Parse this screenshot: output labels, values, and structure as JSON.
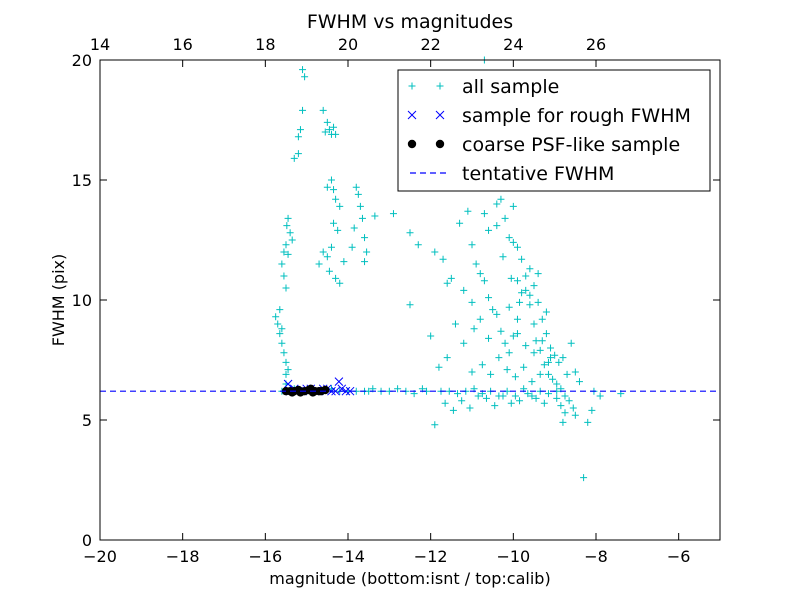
{
  "chart_data": {
    "type": "scatter",
    "title": "FWHM vs magnitudes",
    "xlabel": "magnitude (bottom:isnt / top:calib)",
    "ylabel": "FWHM (pix)",
    "xlim": [
      -20,
      -5
    ],
    "ylim": [
      0,
      20
    ],
    "x_ticks": [
      -20,
      -18,
      -16,
      -14,
      -12,
      -10,
      -8,
      -6
    ],
    "x_tick_labels": [
      "−20",
      "−18",
      "−16",
      "−14",
      "−12",
      "−10",
      "−8",
      "−6"
    ],
    "y_ticks": [
      0,
      5,
      10,
      15,
      20
    ],
    "y_tick_labels": [
      "0",
      "5",
      "10",
      "15",
      "20"
    ],
    "top_axis": {
      "offset": 34,
      "ticks": [
        14,
        16,
        18,
        20,
        22,
        24,
        26
      ],
      "tick_labels": [
        "14",
        "16",
        "18",
        "20",
        "22",
        "24",
        "26"
      ]
    },
    "legend_position": "top-right",
    "series": [
      {
        "name": "all sample",
        "marker": "+",
        "color": "#00bfbf",
        "points": [
          [
            -15.7,
            9.0
          ],
          [
            -15.75,
            9.3
          ],
          [
            -15.65,
            8.6
          ],
          [
            -15.6,
            8.2
          ],
          [
            -15.55,
            7.8
          ],
          [
            -15.5,
            7.4
          ],
          [
            -15.45,
            7.1
          ],
          [
            -15.5,
            6.9
          ],
          [
            -15.6,
            8.8
          ],
          [
            -15.65,
            9.6
          ],
          [
            -15.6,
            11.5
          ],
          [
            -15.55,
            12.0
          ],
          [
            -15.5,
            12.3
          ],
          [
            -15.48,
            13.1
          ],
          [
            -15.45,
            13.4
          ],
          [
            -15.4,
            12.8
          ],
          [
            -15.35,
            12.5
          ],
          [
            -15.55,
            11.0
          ],
          [
            -15.45,
            11.9
          ],
          [
            -15.5,
            10.5
          ],
          [
            -15.3,
            15.9
          ],
          [
            -15.2,
            16.1
          ],
          [
            -15.2,
            16.8
          ],
          [
            -15.15,
            17.1
          ],
          [
            -15.1,
            19.6
          ],
          [
            -15.05,
            19.3
          ],
          [
            -15.1,
            17.9
          ],
          [
            -14.6,
            17.9
          ],
          [
            -14.5,
            17.4
          ],
          [
            -14.45,
            17.1
          ],
          [
            -14.4,
            16.9
          ],
          [
            -14.3,
            16.9
          ],
          [
            -14.35,
            17.2
          ],
          [
            -14.55,
            17.0
          ],
          [
            -14.5,
            14.7
          ],
          [
            -14.4,
            15.0
          ],
          [
            -14.35,
            14.6
          ],
          [
            -14.3,
            14.2
          ],
          [
            -14.2,
            13.9
          ],
          [
            -14.25,
            12.9
          ],
          [
            -14.4,
            12.2
          ],
          [
            -14.5,
            11.8
          ],
          [
            -14.6,
            12.0
          ],
          [
            -14.7,
            11.5
          ],
          [
            -14.45,
            11.2
          ],
          [
            -14.3,
            10.9
          ],
          [
            -14.2,
            10.7
          ],
          [
            -14.1,
            11.6
          ],
          [
            -14.35,
            13.2
          ],
          [
            -13.8,
            14.7
          ],
          [
            -13.75,
            14.4
          ],
          [
            -13.7,
            13.9
          ],
          [
            -13.65,
            13.4
          ],
          [
            -13.6,
            12.6
          ],
          [
            -13.55,
            12.0
          ],
          [
            -13.6,
            11.6
          ],
          [
            -13.85,
            13.0
          ],
          [
            -13.9,
            12.2
          ],
          [
            -13.35,
            13.5
          ],
          [
            -12.9,
            13.6
          ],
          [
            -12.5,
            12.8
          ],
          [
            -12.5,
            9.8
          ],
          [
            -12.3,
            12.3
          ],
          [
            -11.9,
            12.0
          ],
          [
            -11.7,
            11.7
          ],
          [
            -11.5,
            10.9
          ],
          [
            -11.6,
            10.7
          ],
          [
            -11.3,
            13.2
          ],
          [
            -11.1,
            13.7
          ],
          [
            -11.0,
            12.3
          ],
          [
            -10.9,
            11.5
          ],
          [
            -10.8,
            11.1
          ],
          [
            -10.7,
            10.8
          ],
          [
            -10.6,
            10.1
          ],
          [
            -10.5,
            9.6
          ],
          [
            -10.4,
            9.4
          ],
          [
            -10.3,
            8.7
          ],
          [
            -10.2,
            8.2
          ],
          [
            -10.1,
            7.8
          ],
          [
            -10.0,
            8.5
          ],
          [
            -9.9,
            9.2
          ],
          [
            -9.8,
            10.3
          ],
          [
            -9.7,
            11.0
          ],
          [
            -9.6,
            11.3
          ],
          [
            -9.5,
            10.6
          ],
          [
            -9.4,
            9.9
          ],
          [
            -9.3,
            9.2
          ],
          [
            -9.2,
            8.6
          ],
          [
            -9.1,
            8.0
          ],
          [
            -9.0,
            7.7
          ],
          [
            -8.9,
            7.4
          ],
          [
            -8.8,
            7.6
          ],
          [
            -8.7,
            6.9
          ],
          [
            -10.5,
            14.7
          ],
          [
            -10.3,
            14.2
          ],
          [
            -10.2,
            13.4
          ],
          [
            -10.1,
            12.6
          ],
          [
            -10.0,
            12.4
          ],
          [
            -10.4,
            14.0
          ],
          [
            -10.7,
            20.0
          ],
          [
            -10.8,
            16.9
          ],
          [
            -10.9,
            15.0
          ],
          [
            -10.7,
            13.6
          ],
          [
            -10.6,
            12.9
          ],
          [
            -10.4,
            13.1
          ],
          [
            -10.0,
            13.9
          ],
          [
            -9.9,
            12.2
          ],
          [
            -9.8,
            11.7
          ],
          [
            -9.7,
            10.4
          ],
          [
            -9.6,
            9.8
          ],
          [
            -9.5,
            9.0
          ],
          [
            -9.45,
            8.3
          ],
          [
            -9.35,
            7.9
          ],
          [
            -9.25,
            7.3
          ],
          [
            -9.15,
            6.9
          ],
          [
            -9.05,
            6.7
          ],
          [
            -8.95,
            6.5
          ],
          [
            -8.85,
            6.3
          ],
          [
            -8.75,
            6.0
          ],
          [
            -8.65,
            5.8
          ],
          [
            -8.55,
            5.5
          ],
          [
            -8.5,
            5.2
          ],
          [
            -8.8,
            4.9
          ],
          [
            -8.2,
            4.9
          ],
          [
            -8.1,
            5.4
          ],
          [
            -8.3,
            2.6
          ],
          [
            -7.4,
            6.1
          ],
          [
            -7.9,
            6.0
          ],
          [
            -8.05,
            6.2
          ],
          [
            -12.0,
            8.5
          ],
          [
            -11.6,
            7.6
          ],
          [
            -11.8,
            7.2
          ],
          [
            -11.4,
            9.0
          ],
          [
            -11.2,
            8.2
          ],
          [
            -11.0,
            7.0
          ],
          [
            -10.95,
            8.8
          ],
          [
            -10.75,
            7.3
          ],
          [
            -10.55,
            6.9
          ],
          [
            -10.35,
            7.6
          ],
          [
            -10.15,
            7.1
          ],
          [
            -9.95,
            6.8
          ],
          [
            -9.75,
            7.2
          ],
          [
            -9.55,
            6.6
          ],
          [
            -9.35,
            6.9
          ],
          [
            -9.15,
            7.4
          ],
          [
            -8.95,
            5.9
          ],
          [
            -8.85,
            5.6
          ],
          [
            -8.75,
            5.3
          ],
          [
            -9.25,
            5.7
          ],
          [
            -9.45,
            5.9
          ],
          [
            -9.65,
            6.1
          ],
          [
            -9.85,
            5.8
          ],
          [
            -10.05,
            5.7
          ],
          [
            -10.25,
            6.0
          ],
          [
            -10.45,
            5.6
          ],
          [
            -10.65,
            5.9
          ],
          [
            -10.85,
            6.0
          ],
          [
            -11.05,
            5.5
          ],
          [
            -11.25,
            5.8
          ],
          [
            -11.45,
            5.4
          ],
          [
            -11.65,
            5.7
          ],
          [
            -11.9,
            4.8
          ],
          [
            -12.2,
            6.3
          ],
          [
            -12.4,
            6.1
          ],
          [
            -12.6,
            6.2
          ],
          [
            -12.8,
            6.3
          ],
          [
            -13.0,
            6.2
          ],
          [
            -13.2,
            6.2
          ],
          [
            -13.4,
            6.3
          ],
          [
            -13.6,
            6.2
          ],
          [
            -13.8,
            6.2
          ],
          [
            -14.0,
            6.2
          ],
          [
            -14.2,
            6.2
          ],
          [
            -14.4,
            6.3
          ],
          [
            -14.6,
            6.2
          ],
          [
            -14.8,
            6.2
          ],
          [
            -15.0,
            6.2
          ],
          [
            -15.2,
            6.2
          ],
          [
            -15.4,
            6.2
          ],
          [
            -15.6,
            6.2
          ],
          [
            -15.5,
            6.5
          ],
          [
            -15.3,
            6.3
          ],
          [
            -13.5,
            6.2
          ],
          [
            -12.1,
            6.2
          ],
          [
            -11.75,
            6.2
          ],
          [
            -11.55,
            6.2
          ],
          [
            -11.35,
            6.1
          ],
          [
            -11.15,
            6.2
          ],
          [
            -10.95,
            6.3
          ],
          [
            -10.75,
            6.1
          ],
          [
            -10.55,
            6.2
          ],
          [
            -10.35,
            6.0
          ],
          [
            -10.15,
            6.2
          ],
          [
            -9.95,
            6.0
          ],
          [
            -9.75,
            6.3
          ],
          [
            -9.55,
            6.0
          ],
          [
            -9.35,
            6.2
          ],
          [
            -9.15,
            6.1
          ],
          [
            -8.95,
            6.2
          ],
          [
            -9.9,
            8.6
          ],
          [
            -9.7,
            8.1
          ],
          [
            -9.5,
            7.8
          ],
          [
            -9.3,
            8.3
          ],
          [
            -9.1,
            7.6
          ],
          [
            -10.1,
            9.7
          ],
          [
            -9.9,
            10.8
          ],
          [
            -9.6,
            10.2
          ],
          [
            -9.4,
            11.1
          ],
          [
            -9.2,
            9.5
          ],
          [
            -8.6,
            8.2
          ],
          [
            -8.5,
            7.0
          ],
          [
            -8.4,
            6.6
          ],
          [
            -10.6,
            8.4
          ],
          [
            -10.8,
            9.2
          ],
          [
            -11.0,
            9.9
          ],
          [
            -11.2,
            10.4
          ],
          [
            -10.25,
            11.8
          ],
          [
            -10.05,
            10.9
          ],
          [
            -9.85,
            9.9
          ]
        ]
      },
      {
        "name": "sample for rough FWHM",
        "marker": "x",
        "color": "#0000ff",
        "points": [
          [
            -15.45,
            6.5
          ],
          [
            -15.3,
            6.3
          ],
          [
            -15.1,
            6.2
          ],
          [
            -14.9,
            6.3
          ],
          [
            -14.7,
            6.2
          ],
          [
            -14.5,
            6.3
          ],
          [
            -14.3,
            6.2
          ],
          [
            -14.22,
            6.6
          ],
          [
            -14.15,
            6.3
          ],
          [
            -14.05,
            6.2
          ],
          [
            -13.95,
            6.2
          ],
          [
            -14.4,
            6.2
          ],
          [
            -14.6,
            6.3
          ],
          [
            -14.8,
            6.2
          ],
          [
            -15.0,
            6.3
          ],
          [
            -15.2,
            6.2
          ],
          [
            -15.4,
            6.2
          ]
        ]
      },
      {
        "name": "coarse PSF-like sample",
        "marker": "o",
        "color": "#000000",
        "points": [
          [
            -15.5,
            6.2
          ],
          [
            -15.4,
            6.2
          ],
          [
            -15.3,
            6.2
          ],
          [
            -15.2,
            6.25
          ],
          [
            -15.05,
            6.2
          ],
          [
            -14.95,
            6.25
          ],
          [
            -14.85,
            6.15
          ],
          [
            -14.8,
            6.2
          ],
          [
            -14.7,
            6.2
          ],
          [
            -14.55,
            6.25
          ],
          [
            -14.9,
            6.3
          ],
          [
            -15.15,
            6.15
          ],
          [
            -14.65,
            6.2
          ],
          [
            -15.35,
            6.15
          ]
        ]
      }
    ],
    "reference_line": {
      "name": "tentative FWHM",
      "y": 6.2,
      "style": "dashed",
      "color": "#0000ff"
    }
  }
}
